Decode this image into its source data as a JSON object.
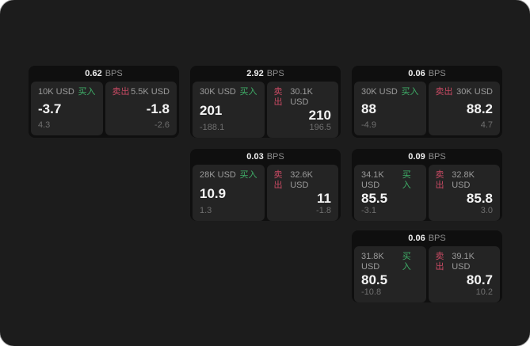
{
  "labels": {
    "bps_unit": "BPS",
    "buy": "买入",
    "sell": "卖出"
  },
  "colors": {
    "outer_bg": "#ffffff",
    "window_bg": "#1c1c1c",
    "card_bg": "#0f0f0f",
    "panel_bg": "#242424",
    "buy_green": "#3faf68",
    "sell_red": "#c84a63",
    "price_text": "#f4f4f4",
    "label_text": "#9b9b9b",
    "change_text": "#6f6f6f"
  },
  "layout": {
    "column_lefts": [
      36,
      240,
      444
    ],
    "row_tops": [
      83,
      188,
      291
    ]
  },
  "cards": [
    {
      "bps": "0.62",
      "col": 1,
      "row": 1,
      "buy": {
        "size": "10K USD",
        "price": "-3.7",
        "change": "4.3"
      },
      "sell": {
        "size": "5.5K USD",
        "price": "-1.8",
        "change": "-2.6"
      }
    },
    {
      "bps": "2.92",
      "col": 2,
      "row": 1,
      "buy": {
        "size": "30K USD",
        "price": "201",
        "change": "-188.1"
      },
      "sell": {
        "size": "30.1K USD",
        "price": "210",
        "change": "196.5"
      }
    },
    {
      "bps": "0.06",
      "col": 3,
      "row": 1,
      "buy": {
        "size": "30K USD",
        "price": "88",
        "change": "-4.9"
      },
      "sell": {
        "size": "30K USD",
        "price": "88.2",
        "change": "4.7"
      }
    },
    {
      "bps": "0.03",
      "col": 2,
      "row": 2,
      "buy": {
        "size": "28K USD",
        "price": "10.9",
        "change": "1.3"
      },
      "sell": {
        "size": "32.6K USD",
        "price": "11",
        "change": "-1.8"
      }
    },
    {
      "bps": "0.09",
      "col": 3,
      "row": 2,
      "buy": {
        "size": "34.1K USD",
        "price": "85.5",
        "change": "-3.1"
      },
      "sell": {
        "size": "32.8K USD",
        "price": "85.8",
        "change": "3.0"
      }
    },
    {
      "bps": "0.06",
      "col": 3,
      "row": 3,
      "buy": {
        "size": "31.8K USD",
        "price": "80.5",
        "change": "-10.8"
      },
      "sell": {
        "size": "39.1K USD",
        "price": "80.7",
        "change": "10.2"
      }
    }
  ]
}
